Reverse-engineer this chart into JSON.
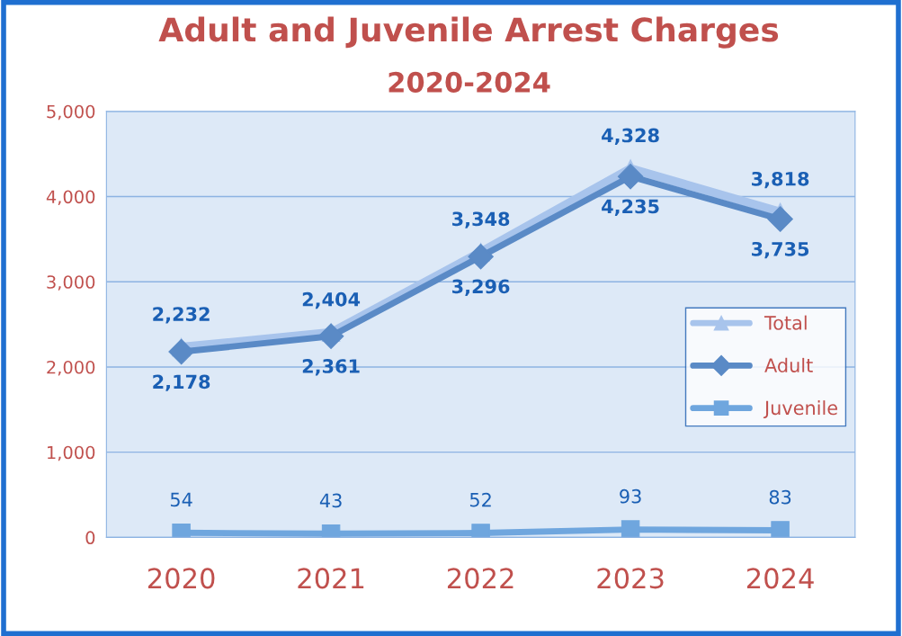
{
  "chart_data": {
    "type": "line",
    "title": "Adult and Juvenile Arrest Charges",
    "subtitle": "2020-2024",
    "categories": [
      "2020",
      "2021",
      "2022",
      "2023",
      "2024"
    ],
    "series": [
      {
        "name": "Total",
        "color": "#a8c4ec",
        "marker": "triangle",
        "values": [
          2232,
          2404,
          3348,
          4328,
          3818
        ],
        "value_labels": [
          "2,232",
          "2,404",
          "3,348",
          "4,328",
          "3,818"
        ]
      },
      {
        "name": "Adult",
        "color": "#5a8ac6",
        "marker": "diamond",
        "values": [
          2178,
          2361,
          3296,
          4235,
          3735
        ],
        "value_labels": [
          "2,178",
          "2,361",
          "3,296",
          "4,235",
          "3,735"
        ]
      },
      {
        "name": "Juvenile",
        "color": "#6fa6de",
        "marker": "square",
        "values": [
          54,
          43,
          52,
          93,
          83
        ],
        "value_labels": [
          "54",
          "43",
          "52",
          "93",
          "83"
        ]
      }
    ],
    "ylim": [
      0,
      5000
    ],
    "yticks": [
      {
        "value": 0,
        "label": "0"
      },
      {
        "value": 1000,
        "label": "1,000"
      },
      {
        "value": 2000,
        "label": "2,000"
      },
      {
        "value": 3000,
        "label": "3,000"
      },
      {
        "value": 4000,
        "label": "4,000"
      },
      {
        "value": 5000,
        "label": "5,000"
      }
    ],
    "grid": "y",
    "legend": "right",
    "line_style": "solid"
  }
}
